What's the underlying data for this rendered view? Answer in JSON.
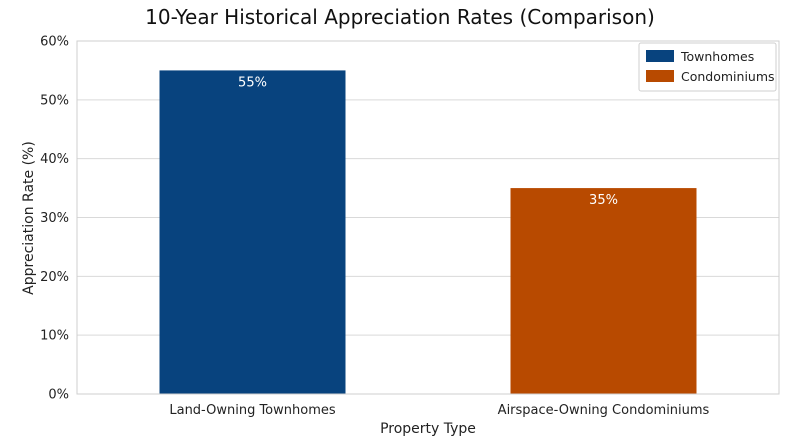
{
  "chart_data": {
    "type": "bar",
    "title": "10-Year Historical Appreciation Rates (Comparison)",
    "xlabel": "Property Type",
    "ylabel": "Appreciation Rate (%)",
    "ylim": [
      0,
      60
    ],
    "yticks": [
      0,
      10,
      20,
      30,
      40,
      50,
      60
    ],
    "ytick_labels": [
      "0%",
      "10%",
      "20%",
      "30%",
      "40%",
      "50%",
      "60%"
    ],
    "grid": true,
    "legend_position": "top-right",
    "categories": [
      "Land-Owning Townhomes",
      "Airspace-Owning Condominiums"
    ],
    "series": [
      {
        "name": "Townhomes",
        "color": "#08437e",
        "values": [
          55,
          null
        ],
        "labels": [
          "55%",
          null
        ]
      },
      {
        "name": "Condominiums",
        "color": "#b84a00",
        "values": [
          null,
          35
        ],
        "labels": [
          null,
          "35%"
        ]
      }
    ]
  }
}
